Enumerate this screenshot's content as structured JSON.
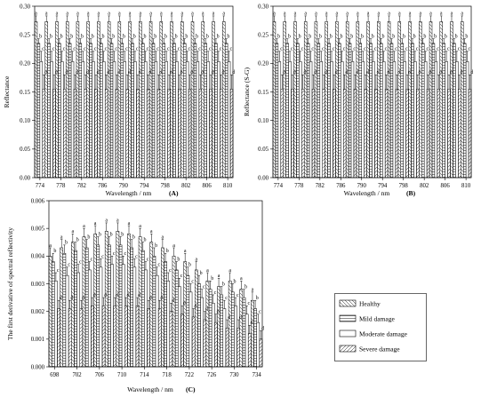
{
  "colors": {
    "bar_fill": "#ffffff",
    "bar_stroke": "#000000",
    "axis": "#000000"
  },
  "legend": [
    {
      "label": "Healthy",
      "pattern": "diag-down"
    },
    {
      "label": "Mild damage",
      "pattern": "horizontal"
    },
    {
      "label": "Moderate damage",
      "pattern": "none"
    },
    {
      "label": "Severe damage",
      "pattern": "diag-up"
    }
  ],
  "chart_data": [
    {
      "panel": "(A)",
      "type": "bar",
      "ylabel": "Reflectance",
      "xlabel": "Wavelength / nm",
      "categories": [
        "774",
        "776",
        "778",
        "780",
        "782",
        "784",
        "786",
        "788",
        "790",
        "792",
        "794",
        "796",
        "798",
        "800",
        "802",
        "804",
        "806",
        "808",
        "810"
      ],
      "tick_labels": [
        "774",
        "778",
        "782",
        "786",
        "790",
        "794",
        "798",
        "802",
        "806",
        "810"
      ],
      "ylim": [
        0,
        0.3
      ],
      "yticks": [
        0.0,
        0.05,
        0.1,
        0.15,
        0.2,
        0.25,
        0.3
      ],
      "ytick_labels": [
        "0.00",
        "0.05",
        "0.10",
        "0.15",
        "0.20",
        "0.25",
        "0.30"
      ],
      "series": [
        {
          "name": "Healthy",
          "values": [
            0.273,
            0.273,
            0.273,
            0.273,
            0.273,
            0.273,
            0.273,
            0.273,
            0.273,
            0.273,
            0.273,
            0.273,
            0.273,
            0.273,
            0.273,
            0.273,
            0.273,
            0.273,
            0.273
          ],
          "errors": [
            0.01,
            0.01,
            0.01,
            0.01,
            0.01,
            0.01,
            0.01,
            0.01,
            0.01,
            0.01,
            0.01,
            0.01,
            0.01,
            0.01,
            0.01,
            0.01,
            0.01,
            0.01,
            0.01
          ],
          "letters": [
            "a",
            "a",
            "a",
            "a",
            "a",
            "a",
            "a",
            "a",
            "a",
            "a",
            "a",
            "a",
            "a",
            "a",
            "a",
            "a",
            "a",
            "a",
            "a"
          ]
        },
        {
          "name": "Mild damage",
          "values": [
            0.235,
            0.235,
            0.235,
            0.235,
            0.235,
            0.235,
            0.235,
            0.235,
            0.235,
            0.235,
            0.235,
            0.235,
            0.235,
            0.235,
            0.235,
            0.235,
            0.235,
            0.235,
            0.235
          ],
          "errors": [
            0.008,
            0.008,
            0.008,
            0.008,
            0.008,
            0.008,
            0.008,
            0.008,
            0.008,
            0.008,
            0.008,
            0.008,
            0.008,
            0.008,
            0.008,
            0.008,
            0.008,
            0.008,
            0.008
          ],
          "letters": [
            "b",
            "b",
            "b",
            "b",
            "b",
            "b",
            "b",
            "b",
            "b",
            "b",
            "b",
            "b",
            "b",
            "b",
            "b",
            "b",
            "b",
            "b",
            "b"
          ]
        },
        {
          "name": "Moderate damage",
          "values": [
            0.203,
            0.203,
            0.203,
            0.203,
            0.203,
            0.203,
            0.203,
            0.203,
            0.203,
            0.203,
            0.203,
            0.203,
            0.203,
            0.203,
            0.203,
            0.203,
            0.203,
            0.203,
            0.203
          ],
          "errors": [
            0.018,
            0.018,
            0.018,
            0.018,
            0.018,
            0.018,
            0.018,
            0.018,
            0.018,
            0.018,
            0.018,
            0.018,
            0.018,
            0.018,
            0.018,
            0.018,
            0.018,
            0.018,
            0.018
          ],
          "letters": [
            "c",
            "c",
            "c",
            "c",
            "c",
            "c",
            "c",
            "c",
            "c",
            "c",
            "c",
            "c",
            "c",
            "c",
            "c",
            "c",
            "c",
            "c",
            "c"
          ]
        },
        {
          "name": "Severe damage",
          "values": [
            0.155,
            0.155,
            0.155,
            0.155,
            0.155,
            0.155,
            0.155,
            0.155,
            0.155,
            0.155,
            0.155,
            0.155,
            0.155,
            0.155,
            0.155,
            0.155,
            0.155,
            0.155,
            0.155
          ],
          "errors": [
            0.025,
            0.025,
            0.025,
            0.025,
            0.025,
            0.025,
            0.025,
            0.025,
            0.025,
            0.025,
            0.025,
            0.025,
            0.025,
            0.025,
            0.025,
            0.025,
            0.025,
            0.025,
            0.025
          ],
          "letters": [
            "d",
            "d",
            "d",
            "d",
            "d",
            "d",
            "d",
            "d",
            "d",
            "d",
            "d",
            "d",
            "d",
            "d",
            "d",
            "d",
            "d",
            "d",
            "d"
          ]
        }
      ]
    },
    {
      "panel": "(B)",
      "type": "bar",
      "ylabel": "Reflectance (S-G)",
      "xlabel": "Wavelength / nm",
      "categories": [
        "774",
        "776",
        "778",
        "780",
        "782",
        "784",
        "786",
        "788",
        "790",
        "792",
        "794",
        "796",
        "798",
        "800",
        "802",
        "804",
        "806",
        "808",
        "810"
      ],
      "tick_labels": [
        "774",
        "778",
        "782",
        "786",
        "790",
        "794",
        "798",
        "802",
        "806",
        "810"
      ],
      "ylim": [
        0,
        0.3
      ],
      "yticks": [
        0.0,
        0.05,
        0.1,
        0.15,
        0.2,
        0.25,
        0.3
      ],
      "ytick_labels": [
        "0.00",
        "0.05",
        "0.10",
        "0.15",
        "0.20",
        "0.25",
        "0.30"
      ],
      "series": [
        {
          "name": "Healthy",
          "values": [
            0.273,
            0.273,
            0.273,
            0.273,
            0.273,
            0.273,
            0.273,
            0.273,
            0.273,
            0.273,
            0.273,
            0.273,
            0.273,
            0.273,
            0.273,
            0.273,
            0.273,
            0.273,
            0.273
          ],
          "errors": [
            0.01,
            0.01,
            0.01,
            0.01,
            0.01,
            0.01,
            0.01,
            0.01,
            0.01,
            0.01,
            0.01,
            0.01,
            0.01,
            0.01,
            0.01,
            0.01,
            0.01,
            0.01,
            0.01
          ],
          "letters": [
            "a",
            "a",
            "a",
            "a",
            "a",
            "a",
            "a",
            "a",
            "a",
            "a",
            "a",
            "a",
            "a",
            "a",
            "a",
            "a",
            "a",
            "a",
            "a"
          ]
        },
        {
          "name": "Mild damage",
          "values": [
            0.235,
            0.235,
            0.235,
            0.235,
            0.235,
            0.235,
            0.235,
            0.235,
            0.235,
            0.235,
            0.235,
            0.235,
            0.235,
            0.235,
            0.235,
            0.235,
            0.235,
            0.235,
            0.235
          ],
          "errors": [
            0.008,
            0.008,
            0.008,
            0.008,
            0.008,
            0.008,
            0.008,
            0.008,
            0.008,
            0.008,
            0.008,
            0.008,
            0.008,
            0.008,
            0.008,
            0.008,
            0.008,
            0.008,
            0.008
          ],
          "letters": [
            "b",
            "b",
            "b",
            "b",
            "b",
            "b",
            "b",
            "b",
            "b",
            "b",
            "b",
            "b",
            "b",
            "b",
            "b",
            "b",
            "b",
            "b",
            "b"
          ]
        },
        {
          "name": "Moderate damage",
          "values": [
            0.203,
            0.203,
            0.203,
            0.203,
            0.203,
            0.203,
            0.203,
            0.203,
            0.203,
            0.203,
            0.203,
            0.203,
            0.203,
            0.203,
            0.203,
            0.203,
            0.203,
            0.203,
            0.203
          ],
          "errors": [
            0.018,
            0.018,
            0.018,
            0.018,
            0.018,
            0.018,
            0.018,
            0.018,
            0.018,
            0.018,
            0.018,
            0.018,
            0.018,
            0.018,
            0.018,
            0.018,
            0.018,
            0.018,
            0.018
          ],
          "letters": [
            "c",
            "c",
            "c",
            "c",
            "c",
            "c",
            "c",
            "c",
            "c",
            "c",
            "c",
            "c",
            "c",
            "c",
            "c",
            "c",
            "c",
            "c",
            "c"
          ]
        },
        {
          "name": "Severe damage",
          "values": [
            0.155,
            0.155,
            0.155,
            0.155,
            0.155,
            0.155,
            0.155,
            0.155,
            0.155,
            0.155,
            0.155,
            0.155,
            0.155,
            0.155,
            0.155,
            0.155,
            0.155,
            0.155,
            0.155
          ],
          "errors": [
            0.025,
            0.025,
            0.025,
            0.025,
            0.025,
            0.025,
            0.025,
            0.025,
            0.025,
            0.025,
            0.025,
            0.025,
            0.025,
            0.025,
            0.025,
            0.025,
            0.025,
            0.025,
            0.025
          ],
          "letters": [
            "d",
            "d",
            "d",
            "d",
            "d",
            "d",
            "d",
            "d",
            "d",
            "d",
            "d",
            "d",
            "d",
            "d",
            "d",
            "d",
            "d",
            "d",
            "d"
          ]
        }
      ]
    },
    {
      "panel": "(C)",
      "type": "bar",
      "ylabel": "The first derivative of spectral reflectivity",
      "xlabel": "Wavelength / nm",
      "categories": [
        "698",
        "700",
        "702",
        "704",
        "706",
        "708",
        "710",
        "712",
        "714",
        "716",
        "718",
        "720",
        "722",
        "724",
        "726",
        "728",
        "730",
        "732",
        "734"
      ],
      "tick_labels": [
        "698",
        "702",
        "706",
        "710",
        "714",
        "718",
        "722",
        "726",
        "730",
        "734"
      ],
      "ylim": [
        0,
        0.006
      ],
      "yticks": [
        0.0,
        0.001,
        0.002,
        0.003,
        0.004,
        0.005,
        0.006
      ],
      "ytick_labels": [
        "0.000",
        "0.001",
        "0.002",
        "0.003",
        "0.004",
        "0.005",
        "0.006"
      ],
      "series": [
        {
          "name": "Healthy",
          "values": [
            0.004,
            0.0043,
            0.0045,
            0.0047,
            0.0048,
            0.0049,
            0.0049,
            0.0048,
            0.0047,
            0.0045,
            0.0043,
            0.004,
            0.0038,
            0.0035,
            0.0031,
            0.0029,
            0.0031,
            0.0028,
            0.0024
          ],
          "errors": [
            0.0003,
            0.0003,
            0.0003,
            0.0003,
            0.0003,
            0.0003,
            0.0003,
            0.0003,
            0.0003,
            0.0003,
            0.0003,
            0.0003,
            0.0003,
            0.0003,
            0.0003,
            0.0003,
            0.0003,
            0.0003,
            0.0003
          ],
          "letters": [
            "a",
            "a",
            "a",
            "a",
            "a",
            "a",
            "a",
            "a",
            "a",
            "a",
            "a",
            "a",
            "a",
            "a",
            "a",
            "a",
            "a",
            "a",
            "a"
          ]
        },
        {
          "name": "Mild damage",
          "values": [
            0.0038,
            0.0041,
            0.0042,
            0.0043,
            0.0044,
            0.0044,
            0.0044,
            0.0043,
            0.0042,
            0.004,
            0.0038,
            0.0035,
            0.0033,
            0.003,
            0.0028,
            0.0026,
            0.0027,
            0.0025,
            0.0021
          ],
          "errors": [
            0.0003,
            0.0003,
            0.0003,
            0.0003,
            0.0003,
            0.0003,
            0.0003,
            0.0003,
            0.0003,
            0.0003,
            0.0003,
            0.0003,
            0.0003,
            0.0003,
            0.0003,
            0.0003,
            0.0003,
            0.0003,
            0.0003
          ],
          "letters": [
            "b",
            "b",
            "b",
            "b",
            "b",
            "b",
            "b",
            "b",
            "b",
            "b",
            "b",
            "b",
            "b",
            "b",
            "b",
            "b",
            "b",
            "b",
            "b"
          ]
        },
        {
          "name": "Moderate damage",
          "values": [
            0.0031,
            0.0033,
            0.0034,
            0.0035,
            0.0036,
            0.0037,
            0.0037,
            0.0036,
            0.0035,
            0.0033,
            0.0031,
            0.0029,
            0.0027,
            0.0025,
            0.0023,
            0.0021,
            0.0022,
            0.0019,
            0.0016
          ],
          "errors": [
            0.0003,
            0.0003,
            0.0003,
            0.0003,
            0.0003,
            0.0003,
            0.0003,
            0.0003,
            0.0003,
            0.0003,
            0.0003,
            0.0003,
            0.0003,
            0.0003,
            0.0003,
            0.0003,
            0.0003,
            0.0003,
            0.0003
          ],
          "letters": [
            "c",
            "c",
            "c",
            "c",
            "c",
            "c",
            "c",
            "c",
            "c",
            "c",
            "c",
            "c",
            "c",
            "c",
            "c",
            "c",
            "c",
            "c",
            "c"
          ]
        },
        {
          "name": "Severe damage",
          "values": [
            0.0021,
            0.0021,
            0.0021,
            0.0022,
            0.0022,
            0.0022,
            0.0022,
            0.0022,
            0.0021,
            0.0021,
            0.002,
            0.0019,
            0.0018,
            0.0017,
            0.0016,
            0.0014,
            0.0014,
            0.0012,
            0.001
          ],
          "errors": [
            0.0003,
            0.0003,
            0.0003,
            0.0003,
            0.0003,
            0.0003,
            0.0003,
            0.0003,
            0.0003,
            0.0003,
            0.0003,
            0.0003,
            0.0003,
            0.0003,
            0.0003,
            0.0003,
            0.0003,
            0.0003,
            0.0003
          ],
          "letters": [
            "d",
            "d",
            "d",
            "d",
            "d",
            "d",
            "d",
            "d",
            "d",
            "d",
            "d",
            "d",
            "d",
            "d",
            "d",
            "d",
            "d",
            "d",
            "d"
          ]
        }
      ]
    }
  ]
}
